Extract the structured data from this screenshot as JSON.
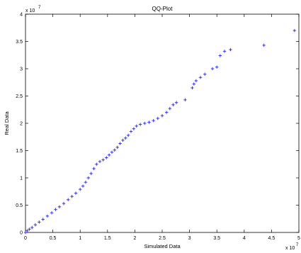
{
  "chart_data": {
    "type": "scatter",
    "title": "QQ-Plot",
    "xlabel": "Simulated Data",
    "ylabel": "Real Data",
    "x_multiplier": "x 10",
    "y_multiplier": "x 10",
    "x_exponent": "7",
    "y_exponent": "7",
    "xlim": [
      0,
      5
    ],
    "ylim": [
      0,
      4
    ],
    "x_ticks": [
      0,
      0.5,
      1,
      1.5,
      2,
      2.5,
      3,
      3.5,
      4,
      4.5,
      5
    ],
    "x_tick_labels": [
      "0",
      "0.5",
      "1",
      "1.5",
      "2",
      "2.5",
      "3",
      "3.5",
      "4",
      "4.5",
      "5"
    ],
    "y_ticks": [
      0,
      0.5,
      1,
      1.5,
      2,
      2.5,
      3,
      3.5,
      4
    ],
    "y_tick_labels": [
      "0",
      "0.5",
      "1",
      "1.5",
      "2",
      "2.5",
      "3",
      "3.5",
      "4"
    ],
    "grid": false,
    "marker": "+",
    "marker_color": "#3333ff",
    "points": [
      [
        0.0,
        0.0
      ],
      [
        0.03,
        0.03
      ],
      [
        0.07,
        0.06
      ],
      [
        0.12,
        0.09
      ],
      [
        0.18,
        0.14
      ],
      [
        0.25,
        0.19
      ],
      [
        0.32,
        0.24
      ],
      [
        0.4,
        0.3
      ],
      [
        0.48,
        0.36
      ],
      [
        0.55,
        0.42
      ],
      [
        0.62,
        0.47
      ],
      [
        0.7,
        0.53
      ],
      [
        0.78,
        0.6
      ],
      [
        0.85,
        0.66
      ],
      [
        0.92,
        0.72
      ],
      [
        1.0,
        0.79
      ],
      [
        1.05,
        0.85
      ],
      [
        1.1,
        0.92
      ],
      [
        1.15,
        1.0
      ],
      [
        1.2,
        1.08
      ],
      [
        1.25,
        1.17
      ],
      [
        1.3,
        1.25
      ],
      [
        1.36,
        1.3
      ],
      [
        1.42,
        1.33
      ],
      [
        1.48,
        1.37
      ],
      [
        1.53,
        1.42
      ],
      [
        1.58,
        1.47
      ],
      [
        1.63,
        1.51
      ],
      [
        1.68,
        1.56
      ],
      [
        1.73,
        1.63
      ],
      [
        1.78,
        1.69
      ],
      [
        1.83,
        1.73
      ],
      [
        1.88,
        1.78
      ],
      [
        1.93,
        1.85
      ],
      [
        1.98,
        1.9
      ],
      [
        2.03,
        1.95
      ],
      [
        2.1,
        1.98
      ],
      [
        2.18,
        2.0
      ],
      [
        2.26,
        2.02
      ],
      [
        2.34,
        2.05
      ],
      [
        2.42,
        2.09
      ],
      [
        2.5,
        2.14
      ],
      [
        2.58,
        2.2
      ],
      [
        2.64,
        2.27
      ],
      [
        2.7,
        2.34
      ],
      [
        2.76,
        2.38
      ],
      [
        2.92,
        2.43
      ],
      [
        3.05,
        2.65
      ],
      [
        3.08,
        2.72
      ],
      [
        3.12,
        2.78
      ],
      [
        3.2,
        2.84
      ],
      [
        3.28,
        2.9
      ],
      [
        3.42,
        3.0
      ],
      [
        3.5,
        3.03
      ],
      [
        3.56,
        3.24
      ],
      [
        3.64,
        3.32
      ],
      [
        3.75,
        3.35
      ],
      [
        4.36,
        3.43
      ],
      [
        4.92,
        3.7
      ]
    ]
  }
}
